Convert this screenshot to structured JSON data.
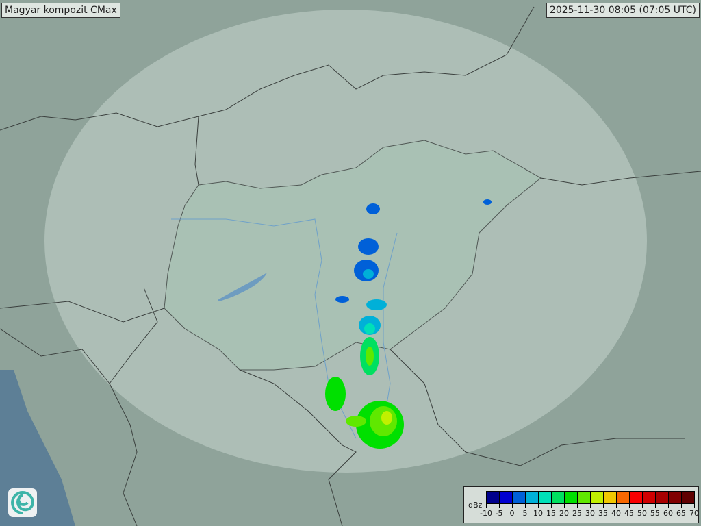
{
  "header": {
    "title": "Magyar kompozit  CMax",
    "timestamp": "2025-11-30 08:05 (07:05 UTC)"
  },
  "legend": {
    "unit": "dBz",
    "ticks": [
      "-10",
      "-5",
      "0",
      "5",
      "10",
      "15",
      "20",
      "25",
      "30",
      "35",
      "40",
      "45",
      "50",
      "55",
      "60",
      "65",
      "70"
    ],
    "colors": [
      "#00008c",
      "#0000d0",
      "#0060d8",
      "#00b0d8",
      "#00e0b8",
      "#00e060",
      "#00e000",
      "#60e800",
      "#c0f000",
      "#f0c800",
      "#f86800",
      "#f80000",
      "#d00000",
      "#a80000",
      "#800000",
      "#600000"
    ]
  },
  "logo": {
    "icon": "swirl-logo-icon"
  },
  "colors": {
    "land": "#8fa39a",
    "coverage": "#c2d1c9",
    "hungary": "#a9c2b4",
    "sea": "#5d7f96",
    "border": "#3a3f3d",
    "river": "#6fa1c9"
  }
}
